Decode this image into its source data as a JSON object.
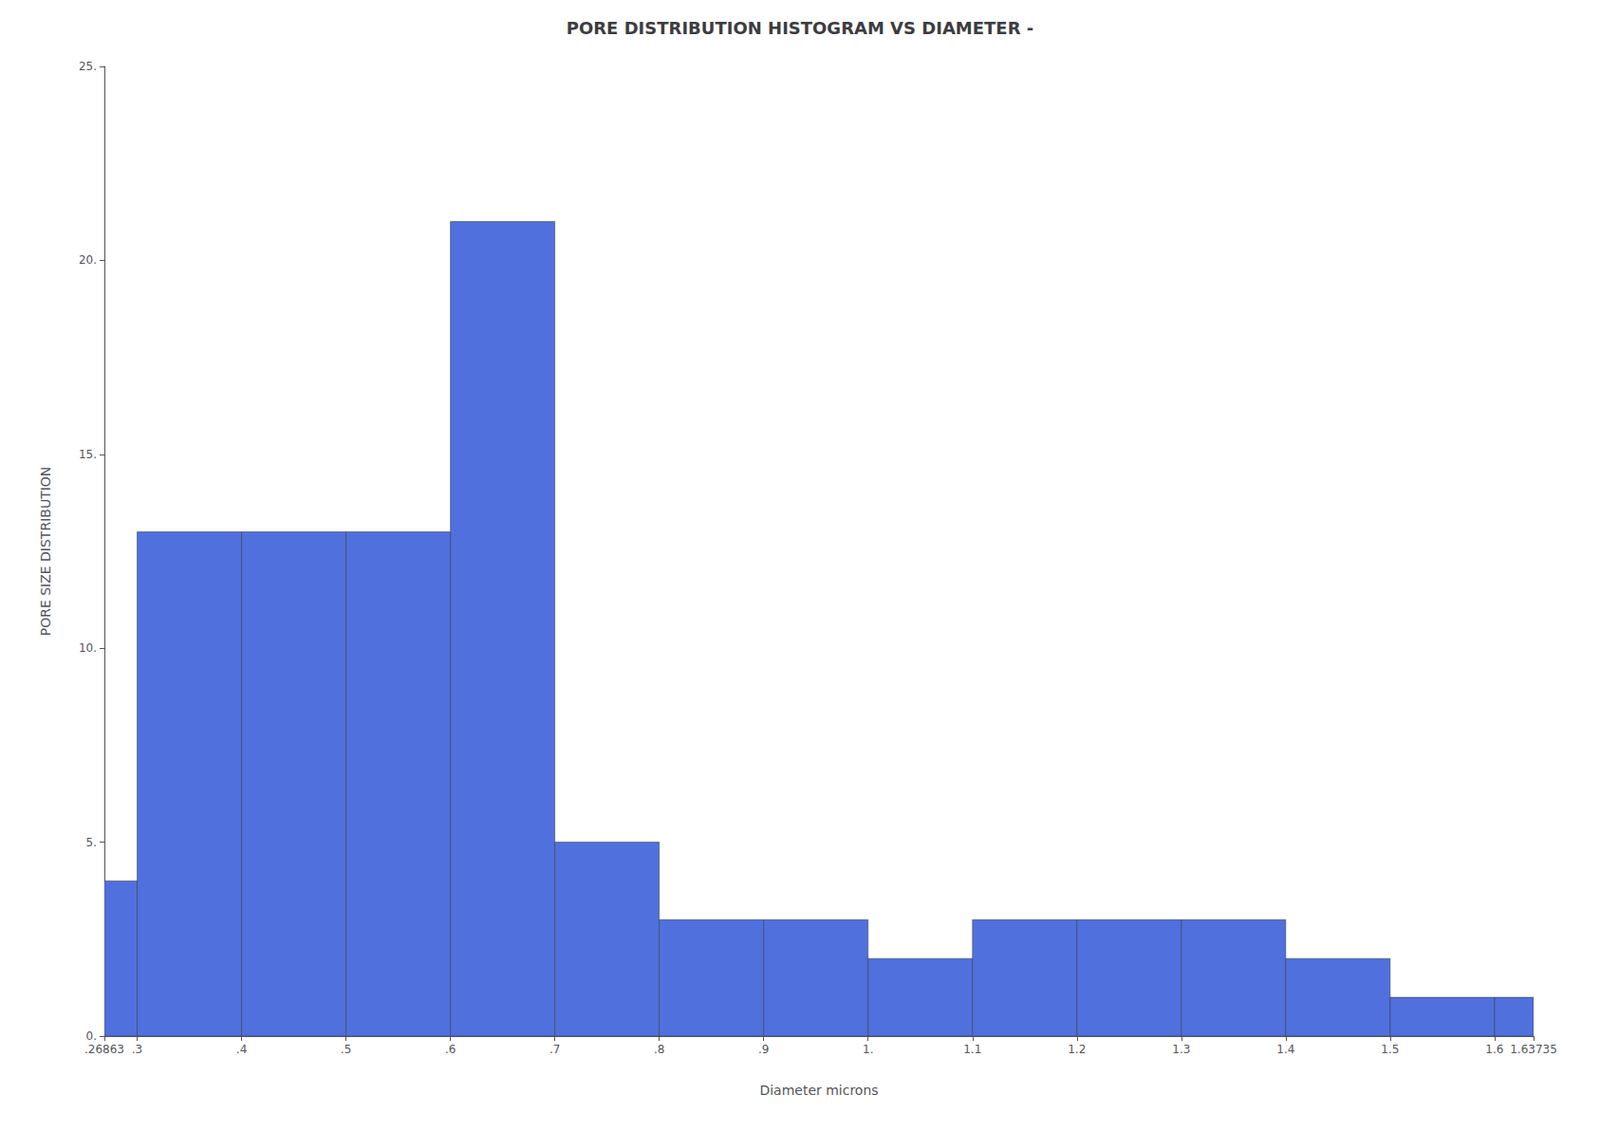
{
  "chart_data": {
    "type": "histogram",
    "title": "PORE DISTRIBUTION HISTOGRAM VS DIAMETER -",
    "xlabel": "Diameter microns",
    "ylabel": "PORE SIZE DISTRIBUTION",
    "bins": [
      0.26863,
      0.3,
      0.4,
      0.5,
      0.6,
      0.7,
      0.8,
      0.9,
      1.0,
      1.1,
      1.2,
      1.3,
      1.4,
      1.5,
      1.6,
      1.63735
    ],
    "values": [
      4,
      13,
      13,
      13,
      21,
      5,
      3,
      3,
      2,
      3,
      3,
      3,
      2,
      1,
      1
    ],
    "xlim": [
      0.26863,
      1.63735
    ],
    "xticks": [
      {
        "value": 0.26863,
        "label": ".26863"
      },
      {
        "value": 0.3,
        "label": ".3"
      },
      {
        "value": 0.4,
        "label": ".4"
      },
      {
        "value": 0.5,
        "label": ".5"
      },
      {
        "value": 0.6,
        "label": ".6"
      },
      {
        "value": 0.7,
        "label": ".7"
      },
      {
        "value": 0.8,
        "label": ".8"
      },
      {
        "value": 0.9,
        "label": ".9"
      },
      {
        "value": 1.0,
        "label": "1."
      },
      1.1,
      1.2,
      1.3,
      1.4,
      1.5,
      1.6,
      {
        "value": 1.63735,
        "label": "1.63735"
      }
    ],
    "ylim": [
      0,
      25
    ],
    "yticks": [
      {
        "value": 0,
        "label": "0."
      },
      {
        "value": 5,
        "label": "5."
      },
      {
        "value": 10,
        "label": "10."
      },
      {
        "value": 15,
        "label": "15."
      },
      {
        "value": 20,
        "label": "20."
      },
      {
        "value": 25,
        "label": "25."
      }
    ],
    "grid": false
  }
}
